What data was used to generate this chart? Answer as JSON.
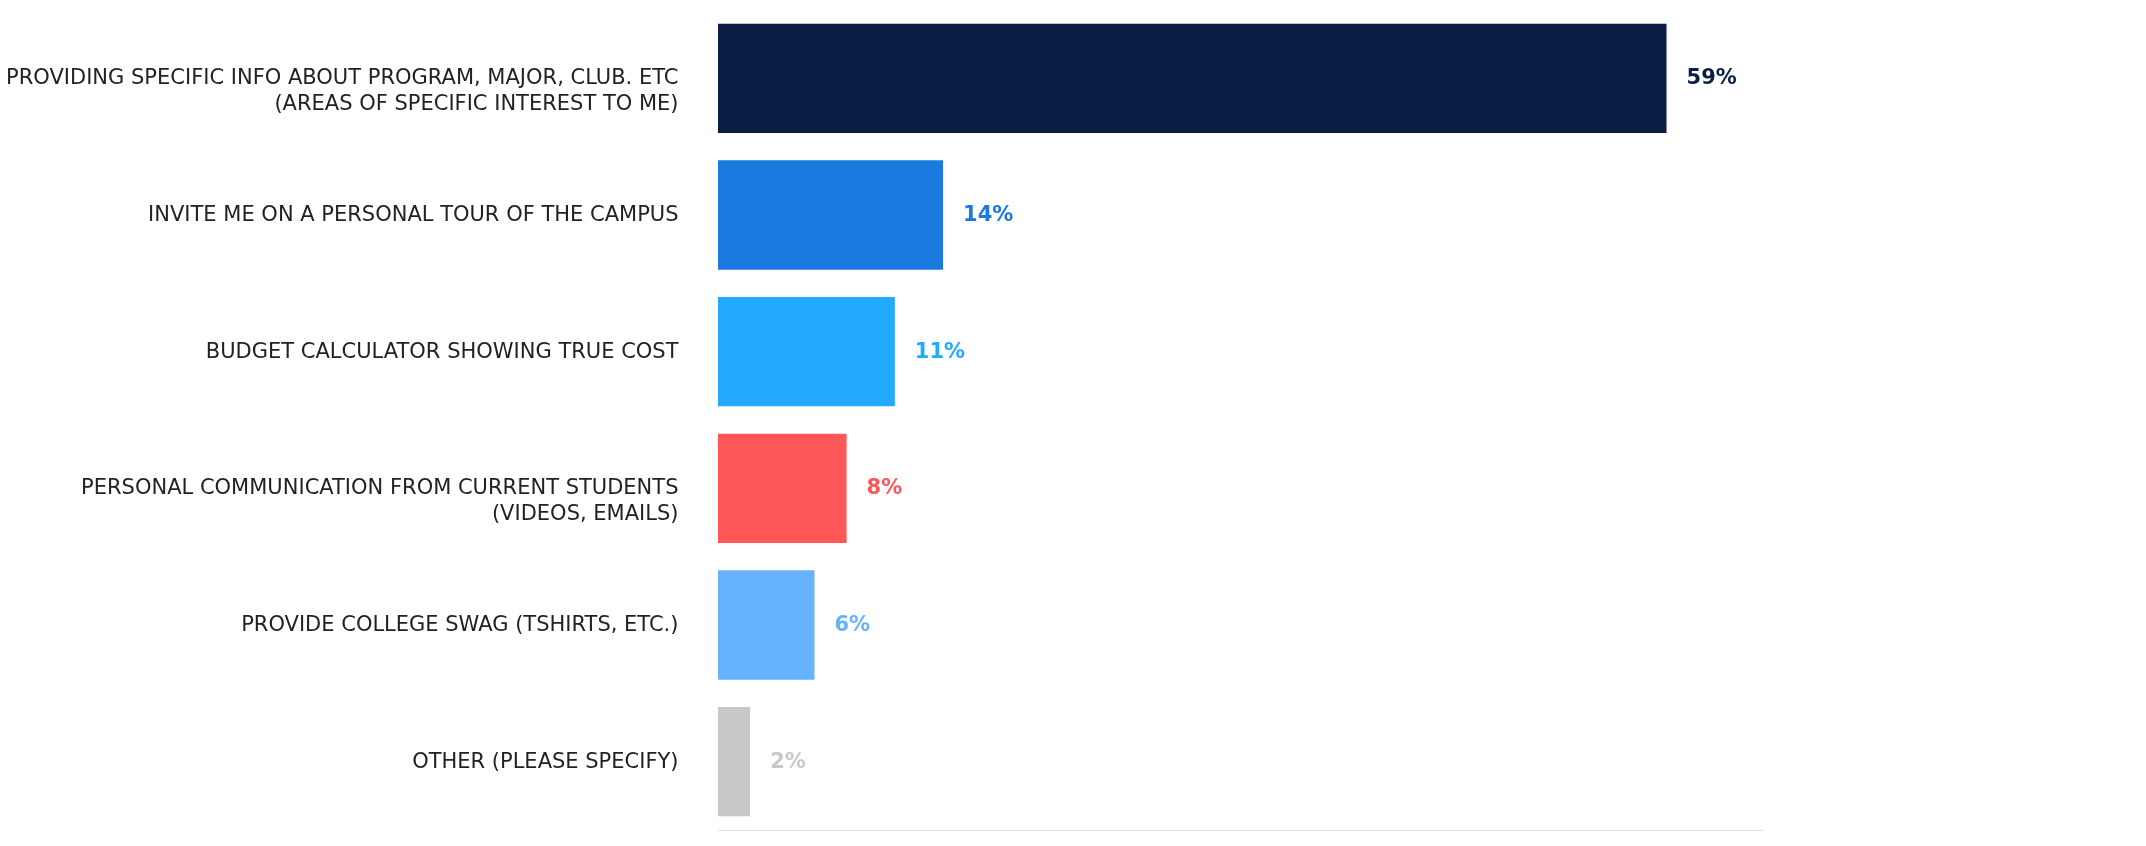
{
  "chart_data": {
    "type": "bar",
    "orientation": "horizontal",
    "categories": [
      "PROVIDING SPECIFIC INFO ABOUT PROGRAM, MAJOR, CLUB. ETC\n(AREAS OF SPECIFIC INTEREST TO ME)",
      "INVITE ME ON A PERSONAL TOUR OF THE CAMPUS",
      "BUDGET CALCULATOR SHOWING TRUE COST",
      "PERSONAL COMMUNICATION FROM CURRENT STUDENTS\n(VIDEOS, EMAILS)",
      "PROVIDE COLLEGE SWAG (TSHIRTS, ETC.)",
      "OTHER (PLEASE SPECIFY)"
    ],
    "values": [
      59,
      14,
      11,
      8,
      6,
      2
    ],
    "colors": [
      "#0b1f45",
      "#1a7ae0",
      "#22aaff",
      "#ff5757",
      "#66b2ff",
      "#c8c8c8"
    ],
    "value_labels": [
      "59%",
      "14%",
      "11%",
      "8%",
      "6%",
      "2%"
    ],
    "xlim": [
      0,
      65
    ],
    "tick_labels": "y"
  }
}
